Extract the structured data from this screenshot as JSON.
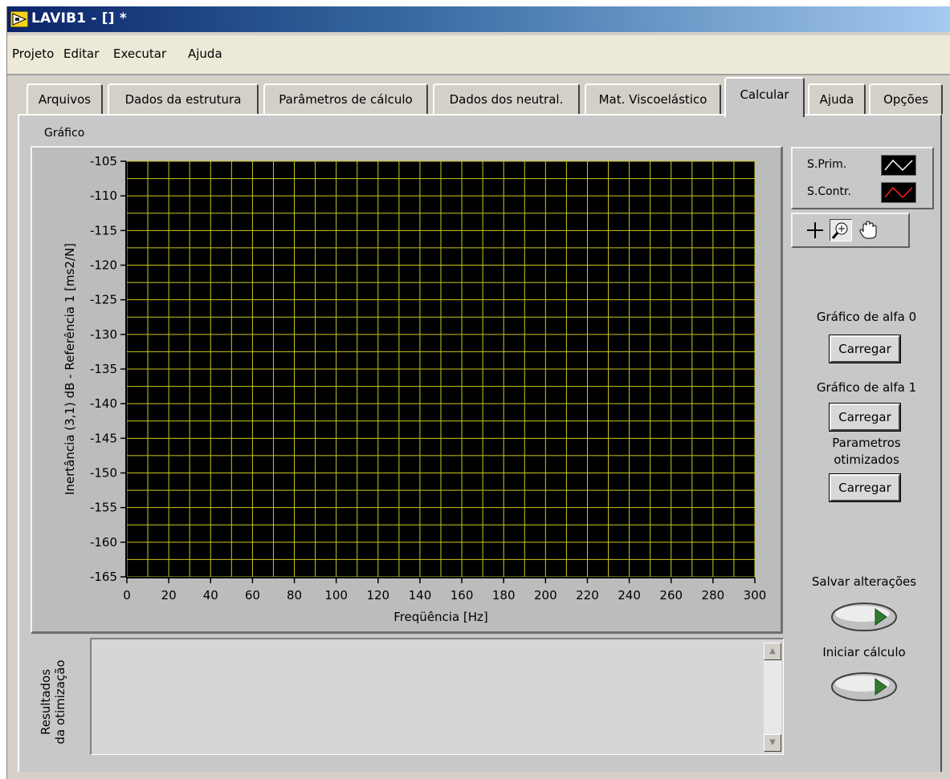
{
  "window": {
    "title": "LAVIB1 - [] *"
  },
  "menu": [
    "Projeto",
    "Editar",
    "Executar",
    "Ajuda"
  ],
  "tabs": [
    {
      "label": "Arquivos",
      "active": false
    },
    {
      "label": "Dados da estrutura",
      "active": false
    },
    {
      "label": "Parâmetros de cálculo",
      "active": false
    },
    {
      "label": "Dados dos neutral.",
      "active": false
    },
    {
      "label": "Mat. Viscoelástico",
      "active": false
    },
    {
      "label": "Calcular",
      "active": true
    },
    {
      "label": "Ajuda",
      "active": false
    },
    {
      "label": "Opções",
      "active": false
    }
  ],
  "graph": {
    "label": "Gráfico",
    "legend": [
      {
        "name": "S.Prim.",
        "color": "#ffffff"
      },
      {
        "name": "S.Contr.",
        "color": "#ff2020"
      }
    ],
    "tools": [
      "crosshair-icon",
      "zoom-icon",
      "pan-hand-icon"
    ]
  },
  "chart_data": {
    "type": "line",
    "title": "",
    "xlabel": "Freqüência [Hz]",
    "ylabel": "Inertância (3,1) dB - Referência 1  [ms2/N]",
    "xlim": [
      0,
      300
    ],
    "ylim": [
      -165,
      -105
    ],
    "x_ticks": [
      0,
      20,
      40,
      60,
      80,
      100,
      120,
      140,
      160,
      180,
      200,
      220,
      240,
      260,
      280,
      300
    ],
    "y_ticks": [
      -105,
      -110,
      -115,
      -120,
      -125,
      -130,
      -135,
      -140,
      -145,
      -150,
      -155,
      -160,
      -165
    ],
    "grid": true,
    "plot_background": "#000000",
    "grid_color": "#c8c820",
    "series": []
  },
  "side": {
    "alfa0_label": "Gráfico de alfa 0",
    "alfa0_button": "Carregar",
    "alfa1_label": "Gráfico de alfa 1",
    "alfa1_button": "Carregar",
    "param_label_1": "Parametros",
    "param_label_2": "otimizados",
    "param_button": "Carregar",
    "save_label": "Salvar alterações",
    "start_label": "Iniciar cálculo"
  },
  "results": {
    "label_1": "Resultados",
    "label_2": "da otimização",
    "text": ""
  },
  "colors": {
    "led_green": "#2e7d2e",
    "panel": "#c8c8c8"
  }
}
